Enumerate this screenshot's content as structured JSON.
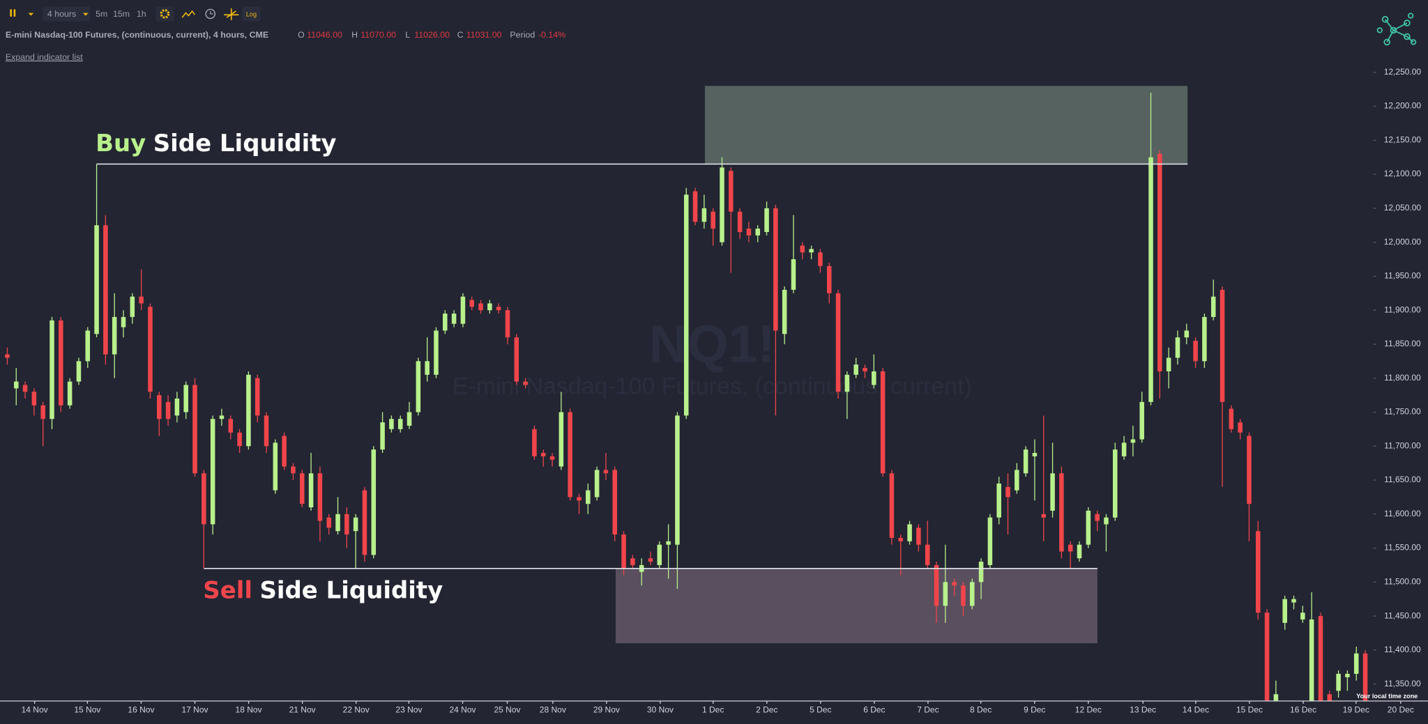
{
  "header": {
    "toolbar": {
      "interval": "4 hours",
      "intervals": [
        "5m",
        "15m",
        "1h"
      ],
      "log": "Log"
    },
    "symbol": "E-mini Nasdaq-100 Futures, (continuous, current), 4 hours, CME",
    "ohlc": [
      {
        "key": "O",
        "value": "11046.00"
      },
      {
        "key": "H",
        "value": "11070.00"
      },
      {
        "key": "L",
        "value": "11026.00"
      },
      {
        "key": "C",
        "value": "11031.00"
      }
    ],
    "period": {
      "key": "Period",
      "value": "-0.14%"
    },
    "expand": "Expand indicator list"
  },
  "chart_data": {
    "type": "candlestick",
    "watermark": {
      "symbol": "NQ1!",
      "description": "E-mini Nasdaq-100 Futures, (continuous, current)"
    },
    "up_color": "#b8f08c",
    "down_color": "#f0454b",
    "open": [
      11835,
      11785,
      11790,
      11780,
      11760,
      11740,
      11885,
      11760,
      11795,
      11825,
      11865,
      12025,
      11835,
      11875,
      11890,
      11920,
      11905,
      11775,
      11765,
      11745,
      11750,
      11790,
      11660,
      11585,
      11740,
      11740,
      11720,
      11700,
      11800,
      11745,
      11635,
      11715,
      11670,
      11660,
      11610,
      11660,
      11595,
      11575,
      11600,
      11575,
      11635,
      11540,
      11695,
      11725,
      11725,
      11730,
      11750,
      11805,
      11805,
      11870,
      11880,
      11880,
      11915,
      11910,
      11900,
      11905,
      11900,
      11860,
      11795,
      11725,
      11690,
      11685,
      11670,
      11750,
      11625,
      11615,
      11625,
      11665,
      11665,
      11570,
      11535,
      11515,
      11535,
      11525,
      11555,
      11555,
      11745,
      12075,
      12030,
      12045,
      12000,
      12105,
      12045,
      12020,
      12010,
      12015,
      12050,
      11865,
      11930,
      11995,
      11985,
      11985,
      11965,
      11925,
      11780,
      11805,
      11815,
      11790,
      11810,
      11660,
      11565,
      11560,
      11580,
      11555,
      11525,
      11465,
      11500,
      11495,
      11465,
      11500,
      11525,
      11595,
      11640,
      11635,
      11660,
      11685,
      11600,
      11605,
      11660,
      11555,
      11535,
      11555,
      11600,
      11585,
      11595,
      11685,
      11705,
      11710,
      11765,
      12130,
      11810,
      11830,
      11860,
      11855,
      11825,
      11890,
      11930,
      11755,
      11735,
      11715,
      11575,
      11455,
      11325,
      11440,
      11470,
      11445,
      11325,
      11450,
      11335,
      11340,
      11360,
      11365,
      11395
    ],
    "high": [
      11845,
      11815,
      11795,
      11785,
      11765,
      11890,
      11890,
      11800,
      11830,
      11875,
      12115,
      12040,
      11925,
      11900,
      11925,
      11960,
      11910,
      11780,
      11775,
      11780,
      11795,
      11800,
      11665,
      11745,
      11755,
      11745,
      11725,
      11810,
      11805,
      11750,
      11710,
      11720,
      11675,
      11665,
      11690,
      11670,
      11600,
      11625,
      11610,
      11600,
      11640,
      11700,
      11750,
      11745,
      11745,
      11765,
      11830,
      11860,
      11875,
      11900,
      11900,
      11925,
      11920,
      11915,
      11915,
      11910,
      11905,
      11865,
      11800,
      11730,
      11695,
      11690,
      11780,
      11755,
      11630,
      11645,
      11670,
      11690,
      11670,
      11575,
      11540,
      11535,
      11545,
      11560,
      11585,
      11750,
      12080,
      12080,
      12070,
      12050,
      12125,
      12110,
      12050,
      12030,
      12025,
      12060,
      12055,
      11935,
      12040,
      12000,
      11995,
      11990,
      11970,
      11930,
      11810,
      11830,
      11820,
      11835,
      11815,
      11665,
      11570,
      11590,
      11585,
      11590,
      11530,
      11555,
      11505,
      11500,
      11505,
      11535,
      11600,
      11655,
      11660,
      11675,
      11700,
      11710,
      11745,
      11705,
      11670,
      11560,
      11560,
      11610,
      11605,
      11600,
      11705,
      11715,
      11730,
      11780,
      12220,
      12135,
      11845,
      11870,
      11880,
      11860,
      11895,
      11945,
      11935,
      11760,
      11740,
      11720,
      11590,
      11460,
      11355,
      11480,
      11480,
      11465,
      11485,
      11455,
      11340,
      11370,
      11370,
      11405,
      11400
    ],
    "low": [
      11820,
      11760,
      11770,
      11745,
      11700,
      11725,
      11750,
      11755,
      11790,
      11815,
      11860,
      11820,
      11800,
      11860,
      11880,
      11900,
      11770,
      11715,
      11730,
      11735,
      11740,
      11655,
      11520,
      11570,
      11730,
      11710,
      11690,
      11695,
      11735,
      11690,
      11630,
      11665,
      11650,
      11610,
      11605,
      11560,
      11570,
      11570,
      11550,
      11520,
      11530,
      11535,
      11690,
      11720,
      11720,
      11725,
      11745,
      11795,
      11800,
      11865,
      11875,
      11875,
      11900,
      11895,
      11895,
      11895,
      11850,
      11790,
      11785,
      11680,
      11670,
      11670,
      11665,
      11620,
      11600,
      11600,
      11620,
      11650,
      11560,
      11510,
      11520,
      11495,
      11525,
      11520,
      11505,
      11490,
      11740,
      12025,
      12020,
      11995,
      11995,
      11955,
      12005,
      12000,
      12000,
      12010,
      11745,
      11850,
      11925,
      11975,
      11975,
      11955,
      11910,
      11770,
      11740,
      11800,
      11800,
      11785,
      11655,
      11555,
      11510,
      11555,
      11545,
      11520,
      11440,
      11440,
      11480,
      11450,
      11460,
      11475,
      11520,
      11585,
      11570,
      11630,
      11655,
      11620,
      11560,
      11595,
      11535,
      11520,
      11530,
      11550,
      11575,
      11545,
      11590,
      11680,
      11685,
      11705,
      11760,
      11770,
      11785,
      11820,
      11850,
      11815,
      11815,
      11885,
      11640,
      11720,
      11710,
      11560,
      11445,
      11300,
      11300,
      11430,
      11460,
      11440,
      11300,
      11300,
      11300,
      11330,
      11340,
      11355,
      11300
    ],
    "close": [
      11830,
      11795,
      11780,
      11760,
      11740,
      11885,
      11760,
      11795,
      11825,
      11870,
      12025,
      11835,
      11890,
      11890,
      11920,
      11910,
      11780,
      11740,
      11740,
      11770,
      11790,
      11660,
      11585,
      11740,
      11745,
      11720,
      11700,
      11805,
      11745,
      11700,
      11705,
      11670,
      11660,
      11615,
      11660,
      11590,
      11580,
      11600,
      11570,
      11595,
      11540,
      11695,
      11735,
      11740,
      11740,
      11750,
      11825,
      11825,
      11870,
      11895,
      11895,
      11920,
      11905,
      11900,
      11910,
      11900,
      11860,
      11795,
      11790,
      11685,
      11685,
      11680,
      11750,
      11625,
      11620,
      11635,
      11665,
      11660,
      11570,
      11520,
      11525,
      11525,
      11530,
      11555,
      11560,
      11745,
      12070,
      12030,
      12050,
      12020,
      12110,
      12045,
      12015,
      12010,
      12020,
      12050,
      11870,
      11930,
      11975,
      11985,
      11990,
      11965,
      11925,
      11780,
      11805,
      11820,
      11810,
      11810,
      11660,
      11565,
      11560,
      11585,
      11555,
      11525,
      11465,
      11500,
      11495,
      11465,
      11500,
      11530,
      11595,
      11645,
      11625,
      11665,
      11695,
      11690,
      11595,
      11660,
      11545,
      11545,
      11555,
      11605,
      11590,
      11595,
      11695,
      11705,
      11710,
      11765,
      12125,
      11810,
      11830,
      11860,
      11870,
      11825,
      11890,
      11920,
      11765,
      11725,
      11720,
      11615,
      11455,
      11325,
      11335,
      11475,
      11475,
      11455,
      11445,
      11325,
      11325,
      11365,
      11365,
      11395,
      11325
    ],
    "ylim": [
      11325,
      12265
    ],
    "yticks": [
      {
        "value": 12250,
        "label": "12,250.00"
      },
      {
        "value": 12200,
        "label": "12,200.00"
      },
      {
        "value": 12150,
        "label": "12,150.00"
      },
      {
        "value": 12100,
        "label": "12,100.00"
      },
      {
        "value": 12050,
        "label": "12,050.00"
      },
      {
        "value": 12000,
        "label": "12,000.00"
      },
      {
        "value": 11950,
        "label": "11,950.00"
      },
      {
        "value": 11900,
        "label": "11,900.00"
      },
      {
        "value": 11850,
        "label": "11,850.00"
      },
      {
        "value": 11800,
        "label": "11,800.00"
      },
      {
        "value": 11750,
        "label": "11,750.00"
      },
      {
        "value": 11700,
        "label": "11,700.00"
      },
      {
        "value": 11650,
        "label": "11,650.00"
      },
      {
        "value": 11600,
        "label": "11,600.00"
      },
      {
        "value": 11550,
        "label": "11,550.00"
      },
      {
        "value": 11500,
        "label": "11,500.00"
      },
      {
        "value": 11450,
        "label": "11,450.00"
      },
      {
        "value": 11400,
        "label": "11,400.00"
      },
      {
        "value": 11350,
        "label": "11,350.00"
      }
    ],
    "xtick_labels": [
      "14 Nov",
      "15 Nov",
      "16 Nov",
      "17 Nov",
      "18 Nov",
      "21 Nov",
      "22 Nov",
      "23 Nov",
      "24 Nov",
      "25 Nov",
      "28 Nov",
      "29 Nov",
      "30 Nov",
      "1 Dec",
      "2 Dec",
      "5 Dec",
      "6 Dec",
      "7 Dec",
      "8 Dec",
      "9 Dec",
      "12 Dec",
      "13 Dec",
      "14 Dec",
      "15 Dec",
      "16 Dec",
      "19 Dec",
      "20 Dec"
    ],
    "timezone_label": "Your local time zone",
    "annotations": [
      {
        "parts": [
          "Buy",
          "Side Liquidity"
        ],
        "color": "#b8f08c",
        "level": 12115,
        "zone": [
          12115,
          12230
        ]
      },
      {
        "parts": [
          "Sell",
          "Side Liquidity"
        ],
        "color": "#f0454b",
        "level": 11520,
        "zone": [
          11410,
          11520
        ]
      }
    ]
  }
}
